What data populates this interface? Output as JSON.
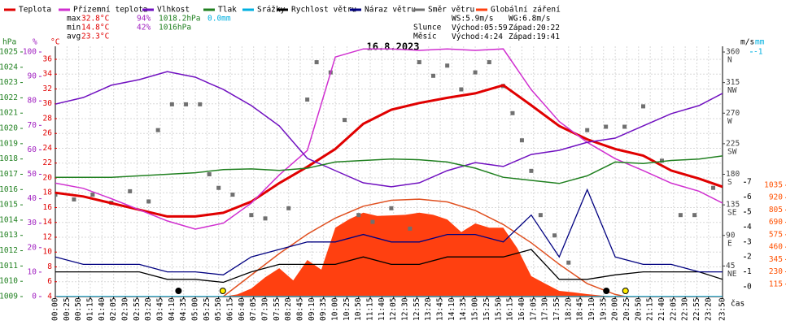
{
  "chart_data": {
    "type": "line",
    "title": "16.8.2023",
    "xlabel": "čas",
    "axis_titles": {
      "y": "°C",
      "y2": "%",
      "y3": "hPa",
      "y4": "m/s",
      "y5": "mm"
    },
    "xlim": [
      0,
      1430
    ],
    "xticks": [
      {
        "value": 0,
        "label": "00:00"
      },
      {
        "value": 25,
        "label": "00:25"
      },
      {
        "value": 50,
        "label": "00:50"
      },
      {
        "value": 75,
        "label": "01:15"
      },
      {
        "value": 100,
        "label": "01:40"
      },
      {
        "value": 125,
        "label": "02:05"
      },
      {
        "value": 150,
        "label": "02:30"
      },
      {
        "value": 175,
        "label": "02:55"
      },
      {
        "value": 200,
        "label": "03:20"
      },
      {
        "value": 225,
        "label": "03:45"
      },
      {
        "value": 250,
        "label": "04:10"
      },
      {
        "value": 275,
        "label": "04:35"
      },
      {
        "value": 300,
        "label": "05:00"
      },
      {
        "value": 325,
        "label": "05:25"
      },
      {
        "value": 350,
        "label": "05:50"
      },
      {
        "value": 375,
        "label": "06:15"
      },
      {
        "value": 400,
        "label": "06:40"
      },
      {
        "value": 425,
        "label": "07:05"
      },
      {
        "value": 450,
        "label": "07:30"
      },
      {
        "value": 475,
        "label": "07:55"
      },
      {
        "value": 500,
        "label": "08:20"
      },
      {
        "value": 525,
        "label": "08:45"
      },
      {
        "value": 550,
        "label": "09:10"
      },
      {
        "value": 575,
        "label": "09:35"
      },
      {
        "value": 600,
        "label": "10:00"
      },
      {
        "value": 625,
        "label": "10:25"
      },
      {
        "value": 650,
        "label": "10:50"
      },
      {
        "value": 675,
        "label": "11:15"
      },
      {
        "value": 700,
        "label": "11:40"
      },
      {
        "value": 725,
        "label": "12:05"
      },
      {
        "value": 750,
        "label": "12:30"
      },
      {
        "value": 775,
        "label": "12:55"
      },
      {
        "value": 800,
        "label": "13:20"
      },
      {
        "value": 825,
        "label": "13:45"
      },
      {
        "value": 850,
        "label": "14:10"
      },
      {
        "value": 875,
        "label": "14:35"
      },
      {
        "value": 900,
        "label": "15:00"
      },
      {
        "value": 925,
        "label": "15:25"
      },
      {
        "value": 950,
        "label": "15:50"
      },
      {
        "value": 975,
        "label": "16:15"
      },
      {
        "value": 1000,
        "label": "16:40"
      },
      {
        "value": 1025,
        "label": "17:05"
      },
      {
        "value": 1050,
        "label": "17:30"
      },
      {
        "value": 1075,
        "label": "17:55"
      },
      {
        "value": 1100,
        "label": "18:20"
      },
      {
        "value": 1125,
        "label": "18:45"
      },
      {
        "value": 1150,
        "label": "19:10"
      },
      {
        "value": 1175,
        "label": "19:35"
      },
      {
        "value": 1200,
        "label": "20:00"
      },
      {
        "value": 1225,
        "label": "20:25"
      },
      {
        "value": 1250,
        "label": "20:50"
      },
      {
        "value": 1275,
        "label": "21:15"
      },
      {
        "value": 1300,
        "label": "21:40"
      },
      {
        "value": 1325,
        "label": "22:05"
      },
      {
        "value": 1350,
        "label": "22:30"
      },
      {
        "value": 1375,
        "label": "22:55"
      },
      {
        "value": 1400,
        "label": "23:20"
      },
      {
        "value": 1430,
        "label": "23:50"
      }
    ],
    "ylim": [
      4,
      37.75
    ],
    "yticks": [
      4,
      6,
      8,
      10,
      12,
      14,
      16,
      18,
      20,
      22,
      24,
      26,
      28,
      30,
      32,
      34,
      36
    ],
    "y2lim": [
      0,
      102.33
    ],
    "y2ticks": [
      0,
      10,
      20,
      30,
      40,
      50,
      60,
      70,
      80,
      90,
      100
    ],
    "y3lim": [
      1009,
      1025.37
    ],
    "y3ticks": [
      1009,
      1010,
      1011,
      1012,
      1013,
      1014,
      1015,
      1016,
      1017,
      1018,
      1019,
      1020,
      1021,
      1022,
      1023,
      1024,
      1025
    ],
    "y4lim": [
      -0.652,
      16.09
    ],
    "y4ticks": [
      0,
      1,
      2,
      3,
      4,
      5,
      6,
      7
    ],
    "y5lim": [
      0,
      -1.023
    ],
    "y5ticks": [
      -1
    ],
    "y6lim": [
      0,
      368.4
    ],
    "y6ticks": [
      45,
      90,
      135,
      180,
      225,
      270,
      315,
      360
    ],
    "y6tick_names": [
      "NE",
      "E",
      "SE",
      "S",
      "SW",
      "W",
      "NW",
      "N"
    ],
    "y7lim": [
      0,
      2327
    ],
    "y7ticks": [
      115,
      230,
      345,
      460,
      575,
      690,
      805,
      920,
      1035
    ],
    "grid": true,
    "x": [
      0,
      60,
      120,
      180,
      240,
      300,
      360,
      420,
      480,
      540,
      600,
      660,
      720,
      780,
      840,
      900,
      960,
      1020,
      1080,
      1140,
      1200,
      1260,
      1320,
      1380,
      1430
    ],
    "series": [
      {
        "name": "Teplota",
        "color": "#e00000",
        "axis": "y",
        "kind": "line",
        "values": [
          18.0,
          17.5,
          16.6,
          15.7,
          14.8,
          14.8,
          15.3,
          16.8,
          19.3,
          21.5,
          23.9,
          27.3,
          29.2,
          30.1,
          30.8,
          31.4,
          32.5,
          29.8,
          27.0,
          25.2,
          23.9,
          23.0,
          21.0,
          19.9,
          18.8
        ]
      },
      {
        "name": "Přízemní teplota",
        "color": "#d030d0",
        "axis": "y",
        "kind": "line",
        "values": [
          19.3,
          18.6,
          17.2,
          15.7,
          14.2,
          13.1,
          13.9,
          16.6,
          20.4,
          23.7,
          36.3,
          37.4,
          37.4,
          37.2,
          37.4,
          37.2,
          37.4,
          31.9,
          27.6,
          24.8,
          22.6,
          21.0,
          19.3,
          18.2,
          16.6
        ]
      },
      {
        "name": "Vlhkost",
        "color": "#7010c0",
        "axis": "y2",
        "kind": "line",
        "values": [
          78.7,
          81.4,
          86.4,
          88.7,
          92.0,
          89.7,
          84.7,
          78.1,
          69.8,
          56.5,
          51.5,
          46.5,
          44.9,
          46.5,
          51.5,
          54.8,
          53.2,
          58.1,
          59.8,
          63.1,
          64.8,
          69.8,
          74.8,
          78.1,
          83.1
        ]
      },
      {
        "name": "Tlak",
        "color": "#208020",
        "axis": "y3",
        "kind": "line",
        "values": [
          1016.8,
          1016.8,
          1016.8,
          1016.9,
          1017.0,
          1017.1,
          1017.3,
          1017.35,
          1017.25,
          1017.4,
          1017.8,
          1017.9,
          1018.0,
          1017.95,
          1017.8,
          1017.4,
          1016.8,
          1016.6,
          1016.4,
          1016.9,
          1017.8,
          1017.7,
          1017.9,
          1018.0,
          1018.2
        ]
      },
      {
        "name": "Srážky",
        "color": "#00b0e0",
        "axis": "y5",
        "kind": "line",
        "values": [
          0,
          0,
          0,
          0,
          0,
          0,
          0,
          0,
          0,
          0,
          0,
          0,
          0,
          0,
          0,
          0,
          0,
          0,
          0,
          0,
          0,
          0,
          0,
          0,
          0
        ]
      },
      {
        "name": "Rychlost větru",
        "color": "#000000",
        "axis": "y4",
        "kind": "line",
        "values": [
          1,
          1,
          1,
          1,
          0.5,
          0.5,
          0.3,
          1,
          1.5,
          1.5,
          1.5,
          2,
          1.5,
          1.5,
          2,
          2,
          2,
          2.5,
          0.5,
          0.5,
          0.8,
          1,
          1,
          1,
          0.5
        ]
      },
      {
        "name": "Náraz větru",
        "color": "#000080",
        "axis": "y4",
        "kind": "line",
        "values": [
          2,
          1.5,
          1.5,
          1.5,
          1,
          1,
          0.8,
          2,
          2.5,
          3,
          3,
          3.5,
          3,
          3,
          3.5,
          3.5,
          3,
          4.8,
          2,
          6.5,
          2,
          1.5,
          1.5,
          1,
          1
        ]
      },
      {
        "name": "Směr větru",
        "color": "#707070",
        "axis": "y6",
        "kind": "scatter",
        "x": [
          0,
          40,
          80,
          120,
          160,
          200,
          220,
          250,
          280,
          310,
          330,
          350,
          380,
          420,
          450,
          500,
          540,
          560,
          590,
          620,
          650,
          680,
          720,
          760,
          780,
          810,
          840,
          870,
          900,
          930,
          960,
          980,
          1000,
          1020,
          1040,
          1070,
          1100,
          1140,
          1180,
          1220,
          1260,
          1300,
          1340,
          1370,
          1410
        ],
        "values": [
          150,
          143,
          150,
          138,
          155,
          140,
          245,
          283,
          283,
          283,
          180,
          160,
          150,
          120,
          115,
          130,
          290,
          345,
          330,
          260,
          120,
          110,
          130,
          100,
          345,
          325,
          340,
          305,
          330,
          345,
          310,
          270,
          230,
          185,
          120,
          90,
          50,
          245,
          250,
          250,
          280,
          200,
          120,
          120,
          160
        ]
      },
      {
        "name": "Globální záření",
        "color": "#ff4010",
        "line_color": "#e05020",
        "axis": "y7",
        "kind": "area",
        "x": [
          360,
          390,
          420,
          450,
          480,
          510,
          540,
          570,
          600,
          630,
          660,
          690,
          720,
          750,
          780,
          810,
          840,
          870,
          900,
          930,
          960,
          990,
          1020,
          1050,
          1080,
          1110,
          1140,
          1170,
          1200
        ],
        "values": [
          0,
          20,
          75,
          180,
          264,
          150,
          340,
          250,
          640,
          720,
          780,
          750,
          755,
          760,
          780,
          760,
          717,
          600,
          680,
          640,
          640,
          450,
          190,
          120,
          53,
          40,
          23,
          10,
          0
        ],
        "clear_sky_x": [
          360,
          420,
          480,
          540,
          600,
          660,
          720,
          780,
          840,
          900,
          960,
          1020,
          1080,
          1140,
          1200,
          1222
        ],
        "clear_sky": [
          0,
          200,
          400,
          580,
          730,
          840,
          895,
          906,
          880,
          800,
          670,
          500,
          300,
          120,
          20,
          0
        ]
      }
    ],
    "stats": {
      "max": [
        "max",
        "32.8°C",
        "94%",
        "1018.2hPa",
        "0.0mm"
      ],
      "min": [
        "min",
        "14.8°C",
        "42%",
        "1016hPa"
      ],
      "avg": [
        "avg",
        "23.3°C"
      ]
    },
    "wind": [
      "WS:5.9m/s",
      "WG:6.8m/s"
    ],
    "sun": {
      "label": "Slunce",
      "rise_label": "Východ:",
      "rise": "05:59",
      "set_label": "Západ:",
      "set": "20:22"
    },
    "moon": {
      "label": "Měsíc",
      "rise_label": "Východ:",
      "rise": "4:24",
      "set_label": "Západ:",
      "set": "19:41"
    }
  }
}
